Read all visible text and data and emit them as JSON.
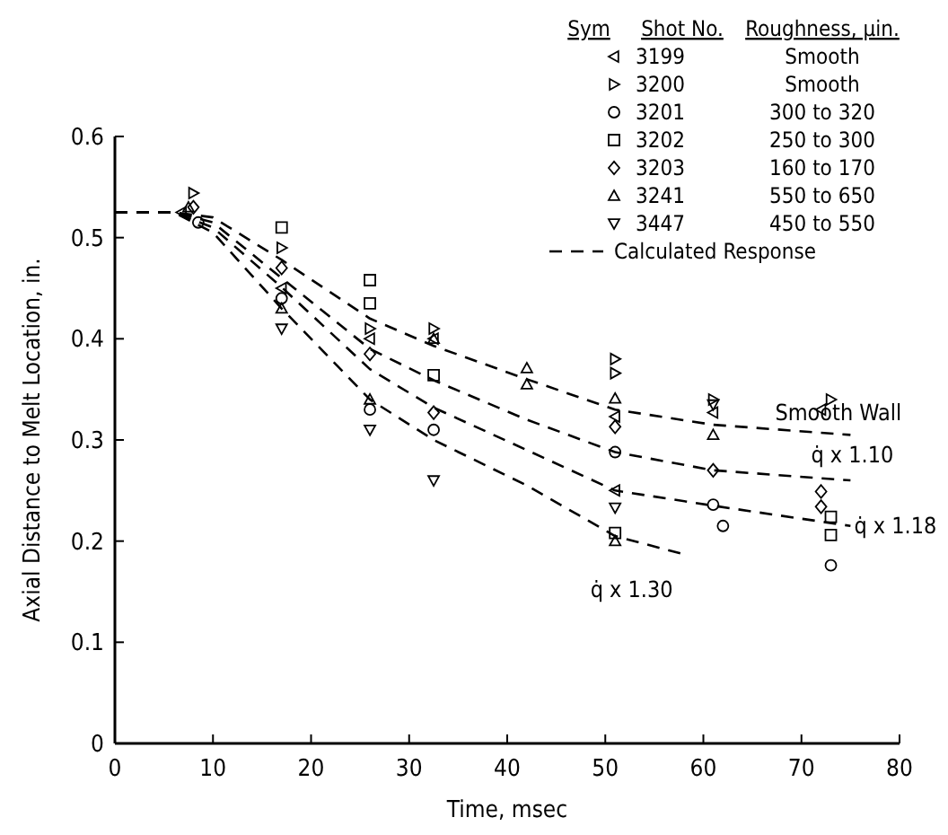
{
  "chart_data": {
    "type": "scatter",
    "xlabel": "Time, msec",
    "ylabel": "Axial Distance to Melt Location, in.",
    "xlim": [
      0,
      80
    ],
    "xticks": [
      0,
      10,
      20,
      30,
      40,
      50,
      60,
      70,
      80
    ],
    "ylim": [
      0,
      0.6
    ],
    "yticks": [
      0,
      0.1,
      0.2,
      0.3,
      0.4,
      0.5,
      0.6
    ],
    "grid": false,
    "legend": "top right",
    "annotations": [
      "Sym",
      "Shot No.",
      "Roughness, µin.",
      "Smooth",
      "Smooth",
      "300 to 320",
      "250 to 300",
      "160 to 170",
      "550 to 650",
      "450 to 550",
      "Calculated Response"
    ],
    "series": [
      {
        "name": "3199",
        "color": "#000000",
        "marker": "triangle-left",
        "x": [
          6.8,
          17,
          26,
          32.5,
          51,
          51,
          61,
          72
        ],
        "values": [
          0.525,
          0.45,
          0.4,
          0.4,
          0.323,
          0.25,
          0.327,
          0.33
        ]
      },
      {
        "name": "3200",
        "color": "#000000",
        "marker": "triangle-right",
        "x": [
          8,
          17,
          26,
          32.5,
          51,
          51,
          61,
          73
        ],
        "values": [
          0.544,
          0.49,
          0.41,
          0.41,
          0.38,
          0.366,
          0.34,
          0.34
        ]
      },
      {
        "name": "3201",
        "color": "#000000",
        "marker": "circle",
        "x": [
          8.5,
          17,
          26,
          32.5,
          51,
          61,
          62,
          73
        ],
        "values": [
          0.515,
          0.44,
          0.33,
          0.31,
          0.288,
          0.236,
          0.215,
          0.176
        ]
      },
      {
        "name": "3202",
        "color": "#000000",
        "marker": "square",
        "x": [
          17,
          26,
          26,
          32.5,
          51,
          73,
          73
        ],
        "values": [
          0.51,
          0.458,
          0.435,
          0.364,
          0.208,
          0.224,
          0.206
        ]
      },
      {
        "name": "3203",
        "color": "#000000",
        "marker": "diamond",
        "x": [
          8,
          17,
          26,
          32.5,
          51,
          61,
          72,
          72
        ],
        "values": [
          0.53,
          0.47,
          0.385,
          0.327,
          0.313,
          0.27,
          0.249,
          0.234
        ]
      },
      {
        "name": "3241",
        "color": "#000000",
        "marker": "triangle",
        "x": [
          7.5,
          17,
          26,
          32.5,
          42,
          42,
          51,
          51,
          61
        ],
        "values": [
          0.53,
          0.43,
          0.34,
          0.4,
          0.371,
          0.355,
          0.341,
          0.2,
          0.305
        ]
      },
      {
        "name": "3447",
        "color": "#000000",
        "marker": "triangle-down",
        "x": [
          17,
          26,
          32.5,
          51,
          61
        ],
        "values": [
          0.41,
          0.31,
          0.26,
          0.233,
          0.335
        ]
      },
      {
        "name": "Smooth Wall",
        "type": "line",
        "color": "#000000",
        "line_style": "dashed",
        "marker": "none",
        "x": [
          0,
          6,
          10,
          17,
          26,
          32.5,
          42,
          51,
          61,
          75
        ],
        "values": [
          0.525,
          0.525,
          0.52,
          0.478,
          0.42,
          0.393,
          0.36,
          0.33,
          0.315,
          0.305
        ]
      },
      {
        "name": "q̇ x 1.10",
        "type": "line",
        "color": "#000000",
        "line_style": "dashed",
        "marker": "none",
        "x": [
          0,
          6,
          10,
          17,
          26,
          32.5,
          42,
          51,
          61,
          75
        ],
        "values": [
          0.525,
          0.525,
          0.515,
          0.46,
          0.39,
          0.359,
          0.32,
          0.288,
          0.27,
          0.26
        ]
      },
      {
        "name": "q̇ x 1.18",
        "type": "line",
        "color": "#000000",
        "line_style": "dashed",
        "marker": "none",
        "x": [
          0,
          6,
          10,
          17,
          26,
          32.5,
          42,
          51,
          61,
          75
        ],
        "values": [
          0.525,
          0.525,
          0.51,
          0.451,
          0.37,
          0.332,
          0.29,
          0.25,
          0.235,
          0.215
        ]
      },
      {
        "name": "q̇ x 1.30",
        "type": "line",
        "color": "#000000",
        "line_style": "dashed",
        "marker": "none",
        "x": [
          0,
          6,
          10,
          17,
          26,
          32.5,
          42,
          51,
          58
        ],
        "values": [
          0.525,
          0.525,
          0.505,
          0.43,
          0.34,
          0.3,
          0.255,
          0.205,
          0.187
        ]
      }
    ]
  }
}
